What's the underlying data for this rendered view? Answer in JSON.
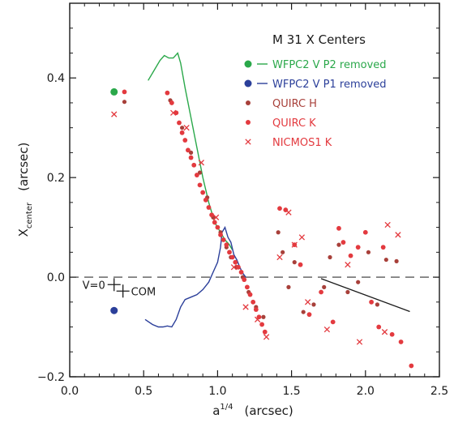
{
  "chart_data": {
    "type": "scatter",
    "title": "M 31 X Centers",
    "xlabel_base": "a",
    "xlabel_exp": "1/4",
    "xlabel_unit": "(arcsec)",
    "ylabel_base": "X",
    "ylabel_sub": "center",
    "ylabel_unit": "(arcsec)",
    "xlim": [
      0.0,
      2.5
    ],
    "ylim": [
      -0.2,
      0.55
    ],
    "xticks": [
      0.0,
      0.5,
      1.0,
      1.5,
      2.0,
      2.5
    ],
    "xtick_labels": [
      "0.0",
      "0.5",
      "1.0",
      "1.5",
      "2.0",
      "2.5"
    ],
    "yticks": [
      -0.2,
      0.0,
      0.2,
      0.4
    ],
    "ytick_labels": [
      "−0.2",
      "0.0",
      "0.2",
      "0.4"
    ],
    "zero_line": 0.0,
    "grid": false,
    "legend_position": "top-right",
    "series": [
      {
        "name": "WFPC2 V P2 removed",
        "kind": "line",
        "marker": "dot",
        "color": "#2aa84a",
        "x": [
          0.53,
          0.57,
          0.61,
          0.64,
          0.67,
          0.7,
          0.73,
          0.75,
          0.78,
          0.82,
          0.86,
          0.9,
          0.94,
          0.98,
          1.02,
          1.05,
          1.08,
          1.1
        ],
        "y": [
          0.395,
          0.415,
          0.435,
          0.445,
          0.44,
          0.44,
          0.45,
          0.43,
          0.38,
          0.32,
          0.26,
          0.2,
          0.15,
          0.11,
          0.09,
          0.075,
          0.065,
          0.055
        ],
        "isolated_points": [
          {
            "x": 0.3,
            "y": 0.372
          }
        ]
      },
      {
        "name": "WFPC2 V P1 removed",
        "kind": "line",
        "marker": "dot",
        "color": "#2b3f9a",
        "x": [
          0.51,
          0.56,
          0.6,
          0.63,
          0.66,
          0.69,
          0.72,
          0.75,
          0.78,
          0.82,
          0.86,
          0.9,
          0.94,
          0.97,
          1.0,
          1.02,
          1.03,
          1.05,
          1.07,
          1.09,
          1.11,
          1.13,
          1.15,
          1.17,
          1.19
        ],
        "y": [
          -0.085,
          -0.095,
          -0.1,
          -0.1,
          -0.098,
          -0.1,
          -0.085,
          -0.06,
          -0.045,
          -0.04,
          -0.035,
          -0.025,
          -0.01,
          0.01,
          0.03,
          0.06,
          0.09,
          0.1,
          0.08,
          0.07,
          0.045,
          0.035,
          0.02,
          0.008,
          0.0
        ],
        "isolated_points": [
          {
            "x": 0.3,
            "y": -0.067
          }
        ]
      },
      {
        "name": "QUIRC H",
        "kind": "scatter",
        "marker": "dot-small",
        "color": "#a8403a",
        "x": [
          0.37,
          0.68,
          0.76,
          0.82,
          0.88,
          0.93,
          0.97,
          1.02,
          1.06,
          1.09,
          1.13,
          1.17,
          1.21,
          1.26,
          1.31,
          1.41,
          1.44,
          1.48,
          1.52,
          1.58,
          1.65,
          1.72,
          1.76,
          1.82,
          1.88,
          1.95,
          2.02,
          2.08,
          2.14,
          2.21
        ],
        "y": [
          0.352,
          0.355,
          0.3,
          0.25,
          0.21,
          0.16,
          0.12,
          0.09,
          0.06,
          0.04,
          0.02,
          0.0,
          -0.03,
          -0.06,
          -0.08,
          0.09,
          0.05,
          -0.02,
          0.03,
          -0.07,
          -0.055,
          -0.02,
          0.04,
          0.065,
          -0.03,
          -0.01,
          0.05,
          -0.055,
          0.035,
          0.032
        ]
      },
      {
        "name": "QUIRC K",
        "kind": "scatter",
        "marker": "dot",
        "color": "#e33a3f",
        "x": [
          0.37,
          0.66,
          0.69,
          0.72,
          0.74,
          0.76,
          0.78,
          0.8,
          0.82,
          0.84,
          0.86,
          0.88,
          0.9,
          0.92,
          0.94,
          0.96,
          0.98,
          1.0,
          1.02,
          1.04,
          1.06,
          1.08,
          1.1,
          1.12,
          1.14,
          1.16,
          1.18,
          1.2,
          1.22,
          1.24,
          1.26,
          1.28,
          1.3,
          1.32,
          1.42,
          1.46,
          1.52,
          1.56,
          1.62,
          1.7,
          1.78,
          1.82,
          1.85,
          1.9,
          1.95,
          2.0,
          2.04,
          2.09,
          2.12,
          2.18,
          2.24,
          2.31
        ],
        "y": [
          0.372,
          0.37,
          0.35,
          0.33,
          0.31,
          0.29,
          0.275,
          0.255,
          0.24,
          0.225,
          0.205,
          0.185,
          0.17,
          0.155,
          0.14,
          0.125,
          0.11,
          0.1,
          0.085,
          0.075,
          0.065,
          0.05,
          0.04,
          0.03,
          0.02,
          0.01,
          -0.005,
          -0.02,
          -0.035,
          -0.05,
          -0.065,
          -0.08,
          -0.095,
          -0.11,
          0.138,
          0.135,
          0.065,
          0.025,
          -0.075,
          -0.03,
          -0.09,
          0.098,
          0.07,
          0.043,
          0.06,
          0.09,
          -0.05,
          -0.1,
          0.06,
          -0.115,
          -0.13,
          -0.178
        ]
      },
      {
        "name": "NICMOS1 K",
        "kind": "scatter",
        "marker": "cross",
        "color": "#e33a3f",
        "x": [
          0.3,
          0.7,
          0.79,
          0.89,
          0.99,
          1.11,
          1.19,
          1.27,
          1.33,
          1.42,
          1.48,
          1.52,
          1.57,
          1.61,
          1.74,
          1.88,
          1.96,
          2.13,
          2.15,
          2.22
        ],
        "y": [
          0.327,
          0.33,
          0.3,
          0.23,
          0.12,
          0.02,
          -0.06,
          -0.085,
          -0.12,
          0.04,
          0.13,
          0.065,
          0.08,
          -0.05,
          -0.105,
          0.025,
          -0.13,
          -0.11,
          0.105,
          0.085
        ]
      }
    ],
    "annotations": [
      {
        "text": "V=0",
        "x": 0.3,
        "y": -0.015,
        "marker": "plus"
      },
      {
        "text": "COM",
        "x": 0.36,
        "y": -0.028,
        "marker": "plus"
      }
    ],
    "fit_line": {
      "x": [
        1.7,
        2.3
      ],
      "y": [
        -0.003,
        -0.069
      ]
    }
  }
}
